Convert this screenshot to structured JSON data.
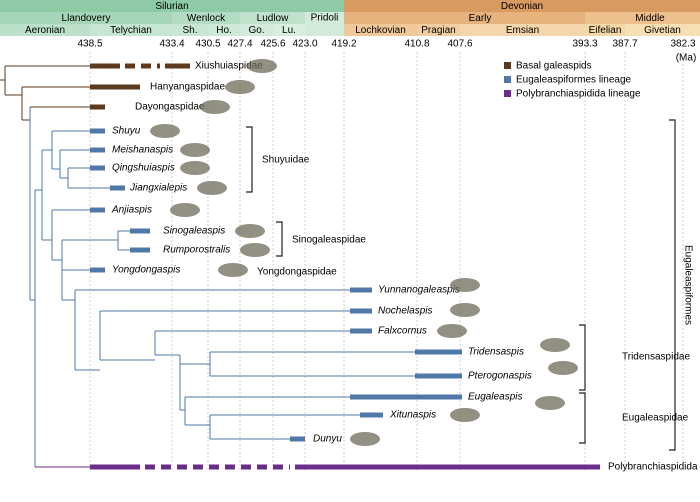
{
  "timescale": {
    "periods": [
      "Silurian",
      "Devonian"
    ],
    "epochs": [
      "Llandovery",
      "Wenlock",
      "Ludlow",
      "Pridoli",
      "Early",
      "Middle"
    ],
    "stages": [
      "Aeronian",
      "Telychian",
      "Sh.",
      "Ho.",
      "Go.",
      "Lu.",
      "Lochkovian",
      "Pragian",
      "Emsian",
      "Eifelian",
      "Givetian"
    ],
    "ages": [
      "438.5",
      "433.4",
      "430.5",
      "427.4",
      "425.6",
      "423.0",
      "419.2",
      "410.8",
      "407.6",
      "393.3",
      "387.7",
      "382.3"
    ],
    "unit": "(Ma)"
  },
  "legend": [
    "Basal galeaspids",
    "Eugaleaspiformes lineage",
    "Polybranchiaspidida lineage"
  ],
  "taxa": [
    "Xiushuiaspidae",
    "Hanyangaspidae",
    "Dayongaspidae",
    "Shuyu",
    "Meishanaspis",
    "Qingshuiaspis",
    "Jiangxialepis",
    "Anjiaspis",
    "Sinogaleaspis",
    "Rumporostralis",
    "Yongdongaspis",
    "Yunnanogaleaspis",
    "Nochelaspis",
    "Falxcornus",
    "Tridensaspis",
    "Pterogonaspis",
    "Eugaleaspis",
    "Xitunaspis",
    "Dunyu",
    "Polybranchiaspidida"
  ],
  "clades": [
    "Shuyuidae",
    "Sinogaleaspidae",
    "Yongdongaspidae",
    "Tridensaspidae",
    "Eugaleaspidae",
    "Eugaleaspiformes"
  ]
}
